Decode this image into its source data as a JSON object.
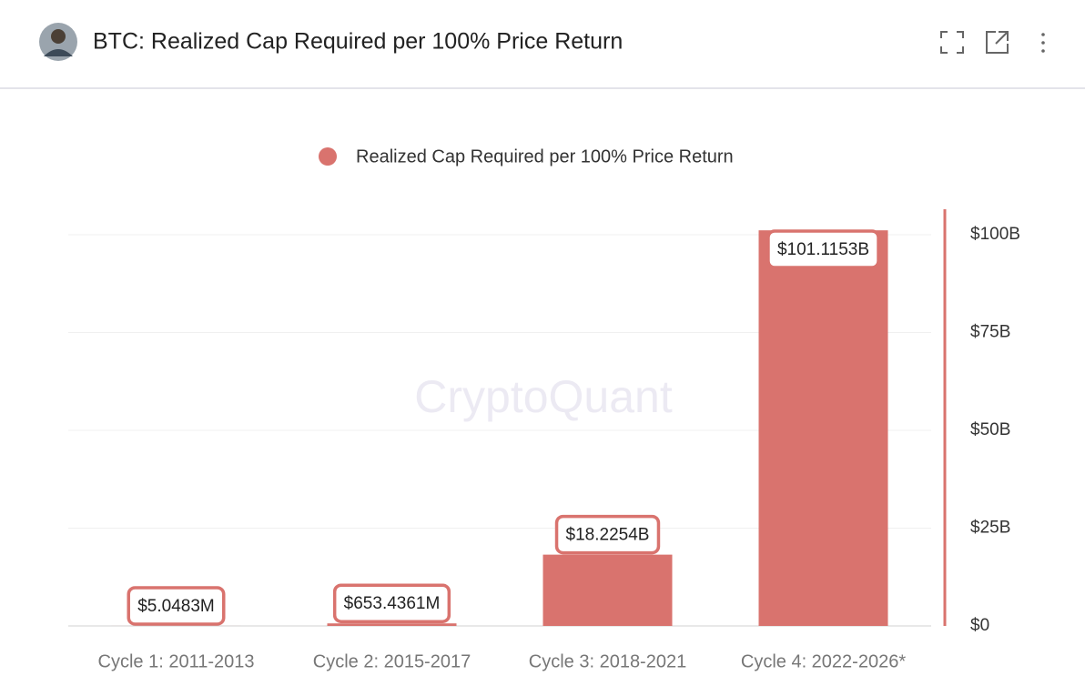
{
  "header": {
    "title": "BTC: Realized Cap Required per 100% Price Return"
  },
  "chart_data": {
    "type": "bar",
    "watermark": "CryptoQuant",
    "categories": [
      "Cycle 1: 2011-2013",
      "Cycle 2: 2015-2017",
      "Cycle 3: 2018-2021",
      "Cycle 4: 2022-2026*"
    ],
    "series": [
      {
        "name": "Realized Cap Required per 100% Price Return",
        "color": "#d9736e",
        "values": [
          5048300,
          653436100,
          18225400000,
          101115300000
        ],
        "value_labels": [
          "$5.0483M",
          "$653.4361M",
          "$18.2254B",
          "$101.1153B"
        ]
      }
    ],
    "ylim": [
      0,
      106500000000
    ],
    "yticks": [
      {
        "value": 0,
        "label": "$0"
      },
      {
        "value": 25000000000,
        "label": "$25B"
      },
      {
        "value": 50000000000,
        "label": "$50B"
      },
      {
        "value": 75000000000,
        "label": "$75B"
      },
      {
        "value": 100000000000,
        "label": "$100B"
      }
    ],
    "grid": true,
    "y_axis_side": "right"
  }
}
